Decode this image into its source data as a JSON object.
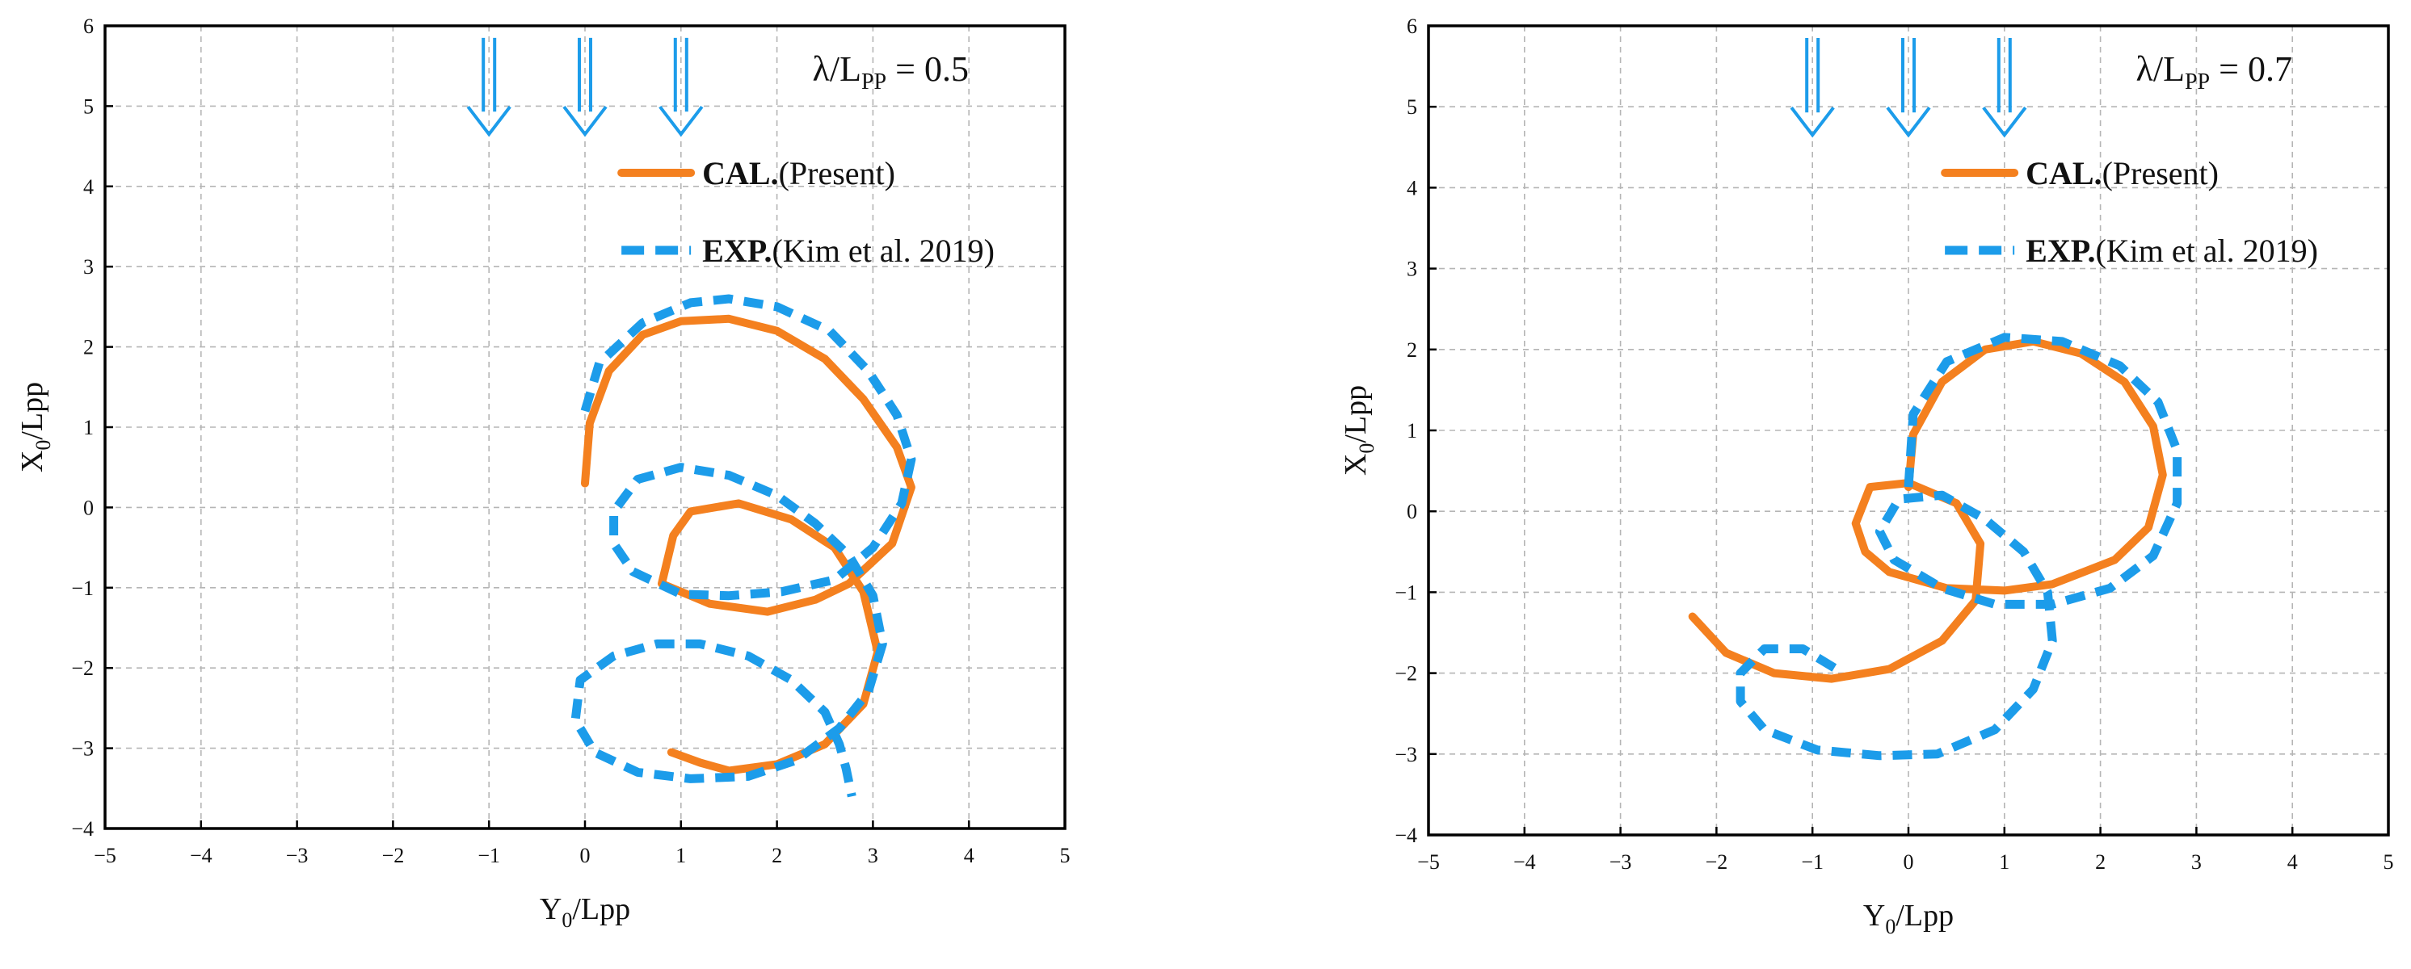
{
  "chart_data": [
    {
      "type": "line",
      "panel": "left",
      "title": "",
      "xlabel": {
        "main": "Y",
        "sub": "0",
        "rest": "/Lpp"
      },
      "ylabel": {
        "main": "X",
        "sub": "0",
        "rest": "/Lpp"
      },
      "xlim": [
        -5,
        5
      ],
      "ylim": [
        -4,
        6
      ],
      "xticks": [
        -5,
        -4,
        -3,
        -2,
        -1,
        0,
        1,
        2,
        3,
        4,
        5
      ],
      "yticks": [
        -4,
        -3,
        -2,
        -1,
        0,
        1,
        2,
        3,
        4,
        5,
        6
      ],
      "xtick_labels": [
        "−5",
        "−4",
        "−3",
        "−2",
        "−1",
        "0",
        "1",
        "2",
        "3",
        "4",
        "5"
      ],
      "ytick_labels": [
        "−4",
        "−3",
        "−2",
        "−1",
        "0",
        "1",
        "2",
        "3",
        "4",
        "5",
        "6"
      ],
      "grid": true,
      "annotation": {
        "lambda": "λ/L",
        "sub": "PP",
        "value": " = 0.5"
      },
      "wave_arrows": {
        "positions_y0": [
          -1,
          0,
          1
        ],
        "top": 5.85,
        "bottom": 4.65,
        "color": "#1C9CEA"
      },
      "legend": {
        "location": "top-right",
        "entries": [
          {
            "label": "CAL.",
            "detail": "(Present)",
            "style": "solid",
            "color": "#F4801F"
          },
          {
            "label": "EXP.",
            "detail": "(Kim et al. 2019)",
            "style": "dashed",
            "color": "#1C9CEA"
          }
        ]
      },
      "series": [
        {
          "name": "CAL.(Present)",
          "style": "solid",
          "color": "#F4801F",
          "points": [
            [
              0.0,
              0.3
            ],
            [
              0.05,
              1.05
            ],
            [
              0.25,
              1.7
            ],
            [
              0.6,
              2.15
            ],
            [
              1.0,
              2.32
            ],
            [
              1.5,
              2.35
            ],
            [
              2.0,
              2.2
            ],
            [
              2.5,
              1.85
            ],
            [
              2.9,
              1.35
            ],
            [
              3.25,
              0.75
            ],
            [
              3.4,
              0.25
            ],
            [
              3.2,
              -0.45
            ],
            [
              2.75,
              -0.95
            ],
            [
              2.4,
              -1.15
            ],
            [
              1.9,
              -1.3
            ],
            [
              1.3,
              -1.2
            ],
            [
              0.8,
              -0.95
            ],
            [
              0.92,
              -0.35
            ],
            [
              1.1,
              -0.05
            ],
            [
              1.6,
              0.05
            ],
            [
              2.15,
              -0.15
            ],
            [
              2.6,
              -0.5
            ],
            [
              2.9,
              -1.05
            ],
            [
              3.05,
              -1.8
            ],
            [
              2.9,
              -2.45
            ],
            [
              2.5,
              -2.95
            ],
            [
              2.0,
              -3.2
            ],
            [
              1.5,
              -3.28
            ],
            [
              1.2,
              -3.18
            ],
            [
              0.9,
              -3.05
            ]
          ]
        },
        {
          "name": "EXP.(Kim et al. 2019)",
          "style": "dashed",
          "color": "#1C9CEA",
          "points": [
            [
              0.0,
              1.2
            ],
            [
              0.15,
              1.8
            ],
            [
              0.6,
              2.3
            ],
            [
              1.1,
              2.55
            ],
            [
              1.5,
              2.6
            ],
            [
              2.0,
              2.5
            ],
            [
              2.55,
              2.2
            ],
            [
              2.95,
              1.7
            ],
            [
              3.25,
              1.15
            ],
            [
              3.4,
              0.6
            ],
            [
              3.3,
              0.05
            ],
            [
              3.0,
              -0.5
            ],
            [
              2.6,
              -0.9
            ],
            [
              2.05,
              -1.05
            ],
            [
              1.5,
              -1.1
            ],
            [
              1.0,
              -1.08
            ],
            [
              0.5,
              -0.8
            ],
            [
              0.3,
              -0.45
            ],
            [
              0.3,
              -0.05
            ],
            [
              0.55,
              0.35
            ],
            [
              1.0,
              0.5
            ],
            [
              1.5,
              0.4
            ],
            [
              2.0,
              0.15
            ],
            [
              2.4,
              -0.2
            ],
            [
              2.75,
              -0.6
            ],
            [
              3.0,
              -1.1
            ],
            [
              3.1,
              -1.7
            ],
            [
              2.95,
              -2.3
            ],
            [
              2.65,
              -2.75
            ],
            [
              2.2,
              -3.15
            ],
            [
              1.7,
              -3.35
            ],
            [
              1.1,
              -3.38
            ],
            [
              0.55,
              -3.3
            ],
            [
              0.1,
              -3.05
            ],
            [
              -0.1,
              -2.65
            ],
            [
              -0.05,
              -2.15
            ],
            [
              0.3,
              -1.85
            ],
            [
              0.75,
              -1.7
            ],
            [
              1.2,
              -1.7
            ],
            [
              1.7,
              -1.85
            ],
            [
              2.15,
              -2.15
            ],
            [
              2.5,
              -2.55
            ],
            [
              2.65,
              -2.95
            ],
            [
              2.72,
              -3.25
            ],
            [
              2.78,
              -3.6
            ]
          ]
        }
      ]
    },
    {
      "type": "line",
      "panel": "right",
      "title": "",
      "xlabel": {
        "main": "Y",
        "sub": "0",
        "rest": "/Lpp"
      },
      "ylabel": {
        "main": "X",
        "sub": "0",
        "rest": "/Lpp"
      },
      "xlim": [
        -5,
        5
      ],
      "ylim": [
        -4,
        6
      ],
      "xticks": [
        -5,
        -4,
        -3,
        -2,
        -1,
        0,
        1,
        2,
        3,
        4,
        5
      ],
      "yticks": [
        -4,
        -3,
        -2,
        -1,
        0,
        1,
        2,
        3,
        4,
        5,
        6
      ],
      "xtick_labels": [
        "−5",
        "−4",
        "−3",
        "−2",
        "−1",
        "0",
        "1",
        "2",
        "3",
        "4",
        "5"
      ],
      "ytick_labels": [
        "−4",
        "−3",
        "−2",
        "−1",
        "0",
        "1",
        "2",
        "3",
        "4",
        "5",
        "6"
      ],
      "grid": true,
      "annotation": {
        "lambda": "λ/L",
        "sub": "PP",
        "value": " = 0.7"
      },
      "wave_arrows": {
        "positions_y0": [
          -1,
          0,
          1
        ],
        "top": 5.85,
        "bottom": 4.65,
        "color": "#1C9CEA"
      },
      "legend": {
        "location": "top-right",
        "entries": [
          {
            "label": "CAL.",
            "detail": "(Present)",
            "style": "solid",
            "color": "#F4801F"
          },
          {
            "label": "EXP.",
            "detail": "(Kim et al. 2019)",
            "style": "dashed",
            "color": "#1C9CEA"
          }
        ]
      },
      "series": [
        {
          "name": "CAL.(Present)",
          "style": "solid",
          "color": "#F4801F",
          "points": [
            [
              0.0,
              0.3
            ],
            [
              0.05,
              0.95
            ],
            [
              0.35,
              1.6
            ],
            [
              0.8,
              2.0
            ],
            [
              1.3,
              2.1
            ],
            [
              1.8,
              1.95
            ],
            [
              2.25,
              1.6
            ],
            [
              2.55,
              1.05
            ],
            [
              2.65,
              0.45
            ],
            [
              2.5,
              -0.2
            ],
            [
              2.15,
              -0.6
            ],
            [
              1.5,
              -0.9
            ],
            [
              1.0,
              -0.98
            ],
            [
              0.4,
              -0.95
            ],
            [
              -0.2,
              -0.75
            ],
            [
              -0.45,
              -0.5
            ],
            [
              -0.55,
              -0.15
            ],
            [
              -0.4,
              0.3
            ],
            [
              0.0,
              0.35
            ],
            [
              0.5,
              0.1
            ],
            [
              0.75,
              -0.4
            ],
            [
              0.7,
              -1.1
            ],
            [
              0.35,
              -1.6
            ],
            [
              -0.2,
              -1.95
            ],
            [
              -0.8,
              -2.07
            ],
            [
              -1.4,
              -2.0
            ],
            [
              -1.9,
              -1.75
            ],
            [
              -2.25,
              -1.3
            ]
          ]
        },
        {
          "name": "EXP.(Kim et al. 2019)",
          "style": "dashed",
          "color": "#1C9CEA",
          "points": [
            [
              0.0,
              0.3
            ],
            [
              0.05,
              1.2
            ],
            [
              0.4,
              1.85
            ],
            [
              1.0,
              2.15
            ],
            [
              1.6,
              2.1
            ],
            [
              2.2,
              1.8
            ],
            [
              2.6,
              1.35
            ],
            [
              2.8,
              0.75
            ],
            [
              2.8,
              0.1
            ],
            [
              2.55,
              -0.55
            ],
            [
              2.1,
              -0.95
            ],
            [
              1.5,
              -1.15
            ],
            [
              0.9,
              -1.15
            ],
            [
              0.35,
              -0.95
            ],
            [
              -0.15,
              -0.6
            ],
            [
              -0.3,
              -0.25
            ],
            [
              -0.1,
              0.15
            ],
            [
              0.35,
              0.2
            ],
            [
              0.8,
              -0.1
            ],
            [
              1.2,
              -0.5
            ],
            [
              1.45,
              -1.0
            ],
            [
              1.5,
              -1.6
            ],
            [
              1.3,
              -2.2
            ],
            [
              0.9,
              -2.7
            ],
            [
              0.3,
              -3.0
            ],
            [
              -0.3,
              -3.02
            ],
            [
              -0.95,
              -2.95
            ],
            [
              -1.5,
              -2.7
            ],
            [
              -1.75,
              -2.35
            ],
            [
              -1.75,
              -2.0
            ],
            [
              -1.5,
              -1.7
            ],
            [
              -1.1,
              -1.7
            ],
            [
              -0.75,
              -1.95
            ]
          ]
        }
      ]
    }
  ]
}
